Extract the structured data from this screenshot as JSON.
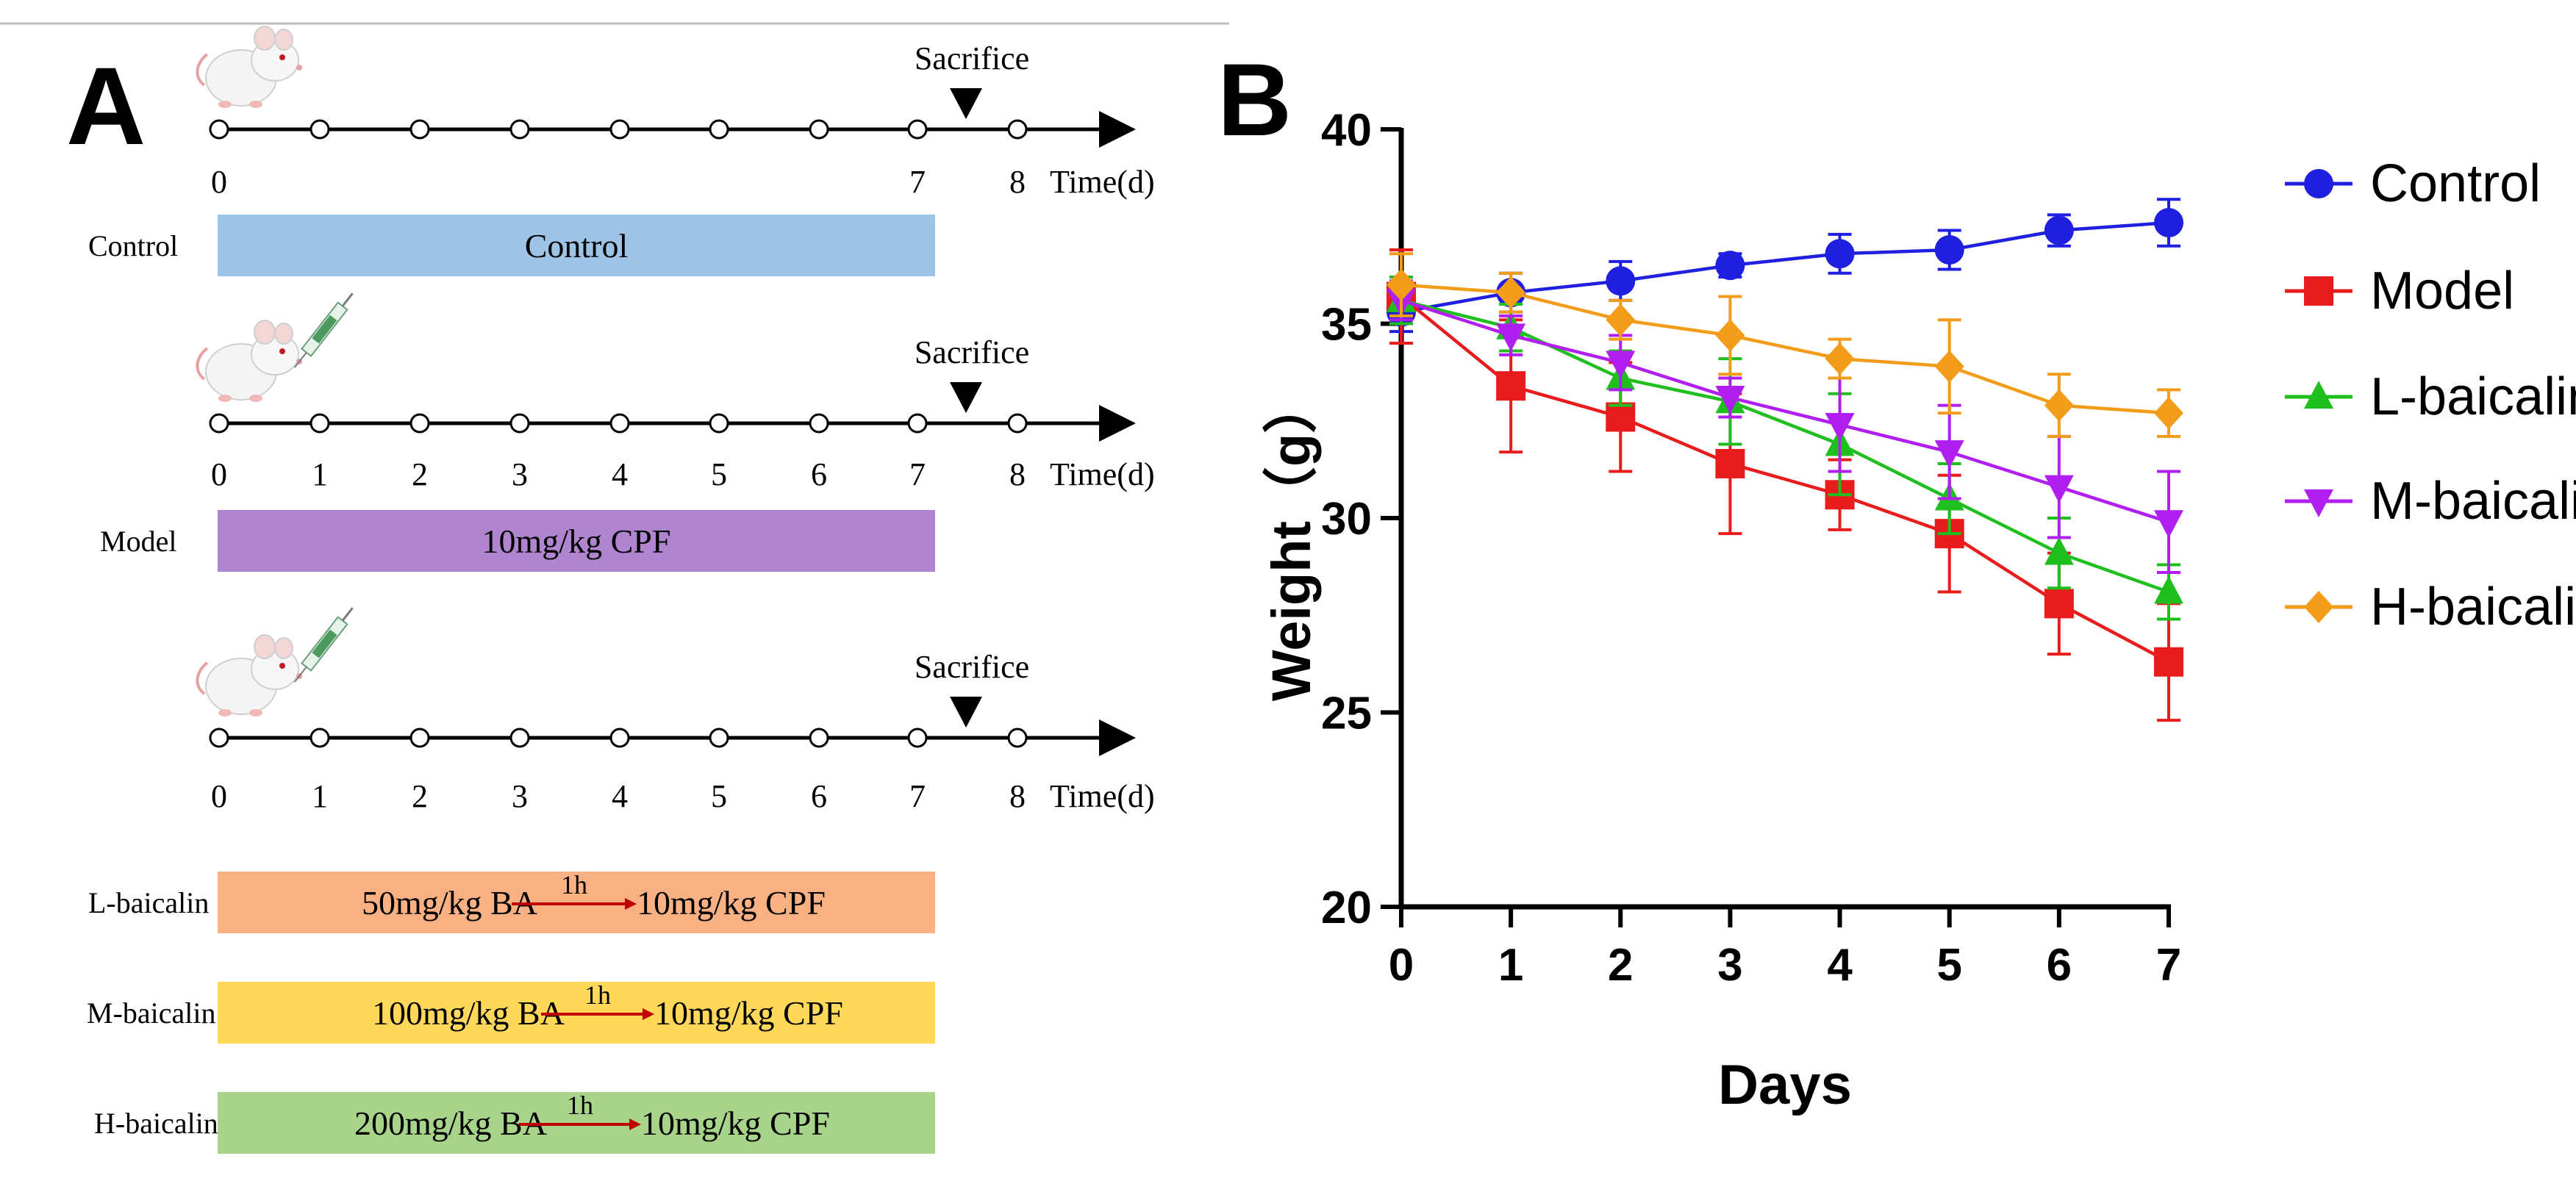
{
  "panel_a": {
    "label": "A",
    "sacrifice_label": "Sacrifice",
    "time_label": "Time(d)",
    "timeline1_ticks": [
      "0",
      "7",
      "8"
    ],
    "timeline_ticks": [
      "0",
      "1",
      "2",
      "3",
      "4",
      "5",
      "6",
      "7",
      "8"
    ],
    "groups": [
      {
        "name": "Control",
        "bar_text": "Control",
        "color": "#9dc3e6"
      },
      {
        "name": "Model",
        "bar_text": "10mg/kg CPF",
        "color": "#b085d0"
      },
      {
        "name": "L-baicalin",
        "dose": "50mg/kg BA",
        "interval": "1h",
        "after": "10mg/kg CPF",
        "color": "#f9b183"
      },
      {
        "name": "M-baicalin",
        "dose": "100mg/kg BA",
        "interval": "1h",
        "after": "10mg/kg CPF",
        "color": "#ffd85a"
      },
      {
        "name": "H-baicalin",
        "dose": "200mg/kg BA",
        "interval": "1h",
        "after": "10mg/kg CPF",
        "color": "#a7d38a"
      }
    ]
  },
  "panel_b": {
    "label": "B"
  },
  "chart_data": {
    "type": "line",
    "title": "",
    "xlabel": "Days",
    "ylabel": "Weight（g）",
    "x": [
      0,
      1,
      2,
      3,
      4,
      5,
      6,
      7
    ],
    "xlim": [
      0,
      7
    ],
    "ylim": [
      20,
      40
    ],
    "yticks": [
      20,
      25,
      30,
      35,
      40
    ],
    "xticks": [
      0,
      1,
      2,
      3,
      4,
      5,
      6,
      7
    ],
    "grid": false,
    "legend": "right",
    "series": [
      {
        "name": "Control",
        "color": "#1f1fe0",
        "marker": "circle",
        "values": [
          35.3,
          35.8,
          36.1,
          36.5,
          36.8,
          36.9,
          37.4,
          37.6
        ],
        "errors": [
          0.5,
          0.5,
          0.5,
          0.3,
          0.5,
          0.5,
          0.4,
          0.6
        ]
      },
      {
        "name": "Model",
        "color": "#e81c1c",
        "marker": "square",
        "values": [
          35.7,
          33.4,
          32.6,
          31.4,
          30.6,
          29.6,
          27.8,
          26.3
        ],
        "errors": [
          1.2,
          1.7,
          1.4,
          1.8,
          0.9,
          1.5,
          1.3,
          1.5
        ]
      },
      {
        "name": "L-baicalin",
        "color": "#1fbf1f",
        "marker": "triangle-up",
        "values": [
          35.6,
          34.9,
          33.6,
          33.0,
          31.9,
          30.5,
          29.1,
          28.1
        ],
        "errors": [
          0.6,
          0.6,
          0.7,
          1.1,
          1.3,
          0.9,
          0.9,
          0.7
        ]
      },
      {
        "name": "M-baicalin",
        "color": "#b01ff0",
        "marker": "triangle-down",
        "values": [
          35.6,
          34.7,
          34.0,
          33.1,
          32.4,
          31.7,
          30.8,
          29.9
        ],
        "errors": [
          0.5,
          0.5,
          0.7,
          0.5,
          1.2,
          1.2,
          1.3,
          1.3
        ]
      },
      {
        "name": "H-baicalin",
        "color": "#f39c1a",
        "marker": "diamond",
        "values": [
          36.0,
          35.8,
          35.1,
          34.7,
          34.1,
          33.9,
          32.9,
          32.7
        ],
        "errors": [
          0.8,
          0.5,
          0.5,
          1.0,
          0.5,
          1.2,
          0.8,
          0.6
        ]
      }
    ]
  }
}
